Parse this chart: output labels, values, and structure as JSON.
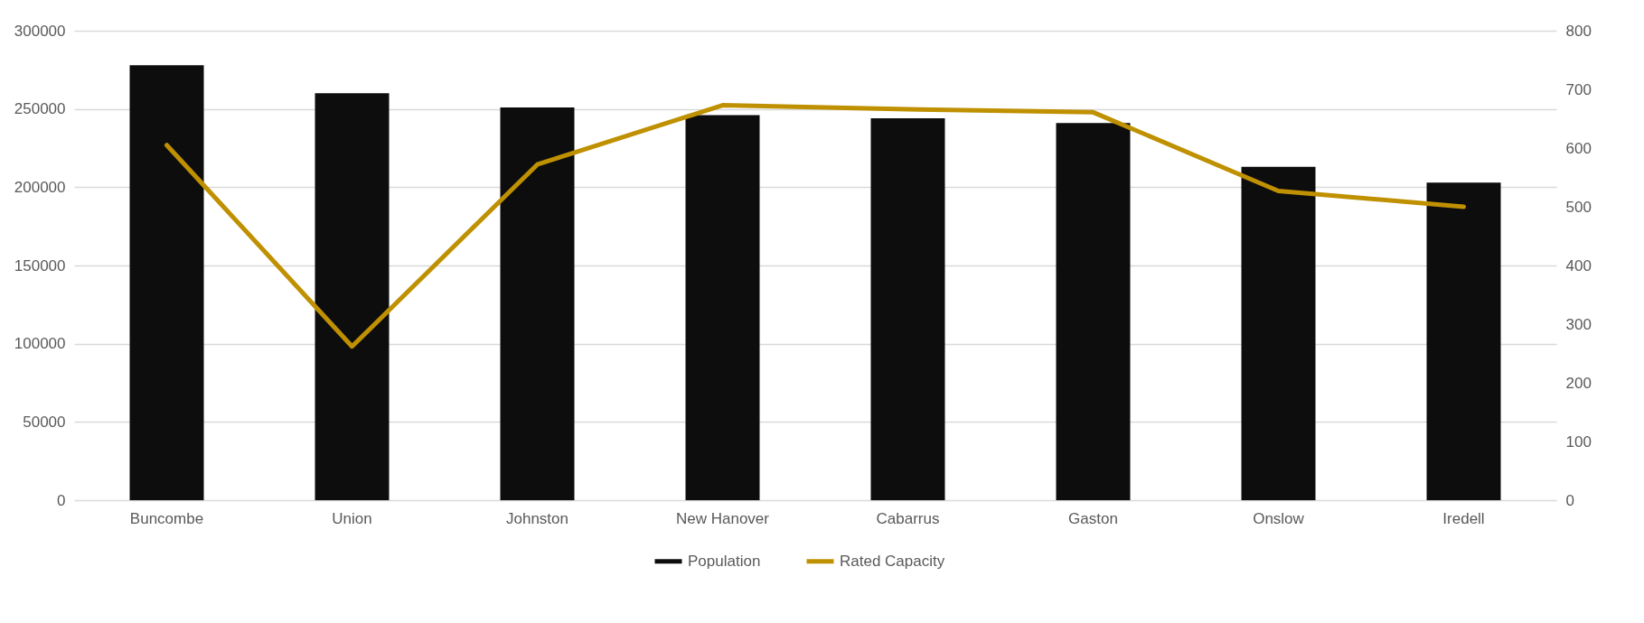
{
  "chart_data": {
    "type": "bar",
    "categories": [
      "Buncombe",
      "Union",
      "Johnston",
      "New Hanover",
      "Cabarrus",
      "Gaston",
      "Onslow",
      "Iredell"
    ],
    "series": [
      {
        "name": "Population",
        "color": "#0d0d0d",
        "values": [
          278000,
          260000,
          251000,
          246000,
          244000,
          241000,
          213000,
          203000
        ]
      },
      {
        "name": "Rated Capacity",
        "type": "line",
        "axis": "y2",
        "color": "#bf9000",
        "values": [
          605,
          262,
          572,
          673,
          666,
          661,
          527,
          500
        ]
      }
    ],
    "ylim": [
      0,
      300000
    ],
    "yticks": [
      0,
      50000,
      100000,
      150000,
      200000,
      250000,
      300000
    ],
    "y2lim": [
      0,
      800
    ],
    "y2ticks": [
      0,
      100,
      200,
      300,
      400,
      500,
      600,
      700,
      800
    ],
    "grid": "y",
    "legend": "bottom"
  }
}
